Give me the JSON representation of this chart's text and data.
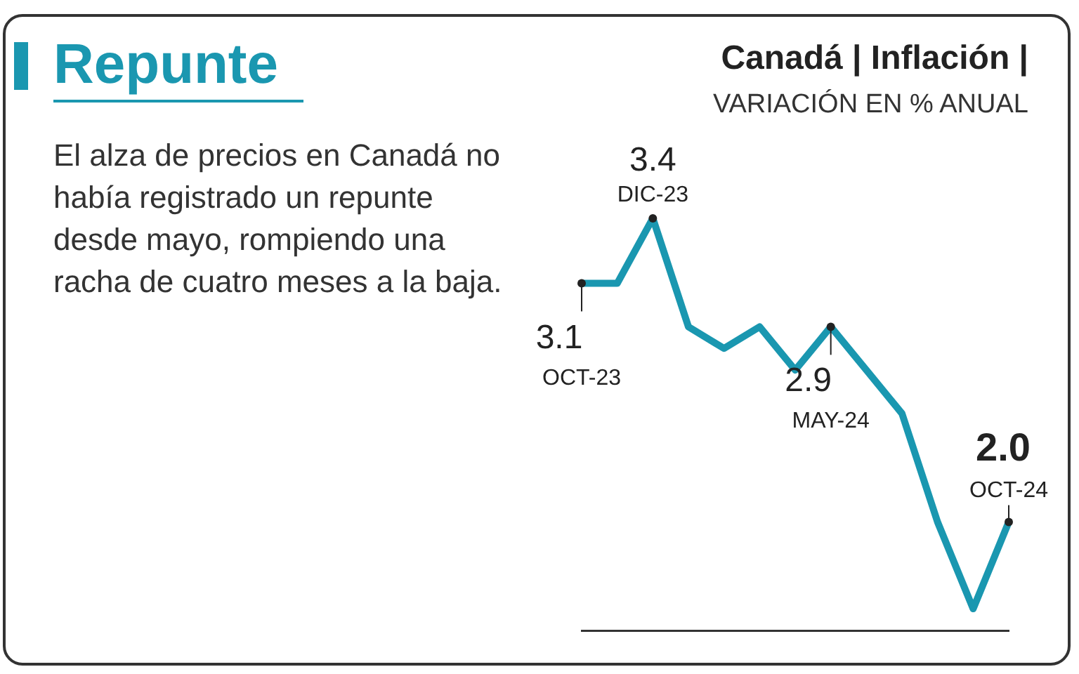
{
  "chart_data": {
    "type": "line",
    "title": "Repunte",
    "subtitle": "Canadá | Inflación |",
    "ylabel": "VARIACIÓN EN % ANUAL",
    "annotations": [
      "El alza de precios en Canadá no había registrado un repunte desde mayo, rompiendo una racha de cuatro meses a la baja."
    ],
    "categories": [
      "OCT-23",
      null,
      "DIC-23",
      null,
      null,
      null,
      null,
      "MAY-24",
      null,
      null,
      null,
      null,
      "OCT-24"
    ],
    "series": [
      {
        "color": "#1a97b0",
        "values": [
          3.1,
          3.1,
          3.4,
          2.9,
          2.8,
          2.9,
          2.7,
          2.9,
          2.7,
          2.5,
          2.0,
          1.6,
          2.0
        ],
        "value_labels": [
          "3.1",
          null,
          "3.4",
          null,
          null,
          null,
          null,
          "2.9",
          null,
          null,
          null,
          null,
          "2.0"
        ]
      }
    ],
    "grid": false,
    "legend": false,
    "marker": "none",
    "line_style": "solid"
  }
}
